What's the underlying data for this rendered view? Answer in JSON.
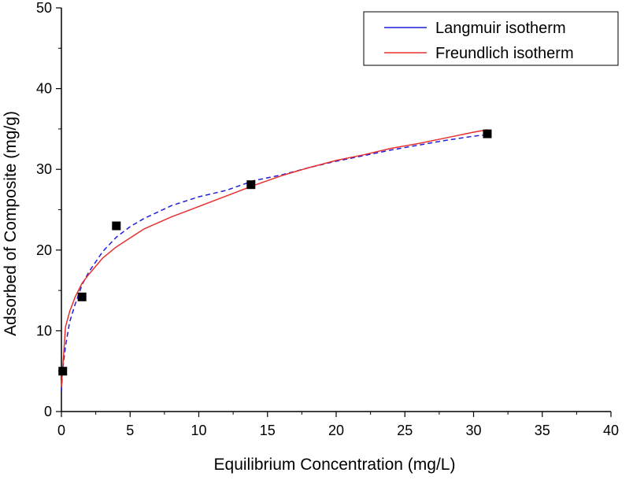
{
  "chart_data": {
    "type": "scatter",
    "xlabel": "Equilibrium Concentration (mg/L)",
    "ylabel": "Adsorbed of Composite (mg/g)",
    "xlim": [
      0,
      40
    ],
    "ylim": [
      0,
      50
    ],
    "xticks": [
      0,
      5,
      10,
      15,
      20,
      25,
      30,
      35,
      40
    ],
    "yticks": [
      0,
      10,
      20,
      30,
      40,
      50
    ],
    "grid": false,
    "legend_position": "top-right",
    "points": {
      "marker": "filled-square",
      "color": "#000000",
      "x": [
        0.1,
        1.5,
        4.0,
        13.8,
        31.0
      ],
      "y": [
        5.0,
        14.2,
        23.0,
        28.1,
        34.4
      ]
    },
    "series": [
      {
        "name": "Langmuir isotherm",
        "style": "dashed",
        "color": "#1f1fdd",
        "x": [
          0,
          0.1,
          0.3,
          0.6,
          1,
          1.5,
          2,
          3,
          4,
          5,
          6,
          8,
          10,
          12,
          14,
          16,
          18,
          20,
          22,
          24,
          26,
          28,
          30,
          31
        ],
        "y": [
          2.5,
          5.3,
          8.1,
          11.1,
          13.3,
          15.7,
          17.3,
          19.8,
          21.6,
          22.9,
          23.9,
          25.5,
          26.6,
          27.4,
          28.6,
          29.3,
          30.2,
          31.0,
          31.7,
          32.4,
          33.0,
          33.6,
          34.1,
          34.3
        ]
      },
      {
        "name": "Freundlich isotherm",
        "style": "solid",
        "color": "#e83030",
        "x": [
          0,
          0.1,
          0.3,
          0.6,
          1,
          1.5,
          2,
          3,
          4,
          5,
          6,
          8,
          10,
          12,
          14,
          16,
          18,
          20,
          22,
          24,
          26,
          28,
          30,
          31
        ],
        "y": [
          3.0,
          5.5,
          10.5,
          12.4,
          14.2,
          15.9,
          17.0,
          19.0,
          20.4,
          21.5,
          22.6,
          24.1,
          25.4,
          26.7,
          28.0,
          29.2,
          30.2,
          31.1,
          31.8,
          32.6,
          33.2,
          33.9,
          34.6,
          34.9
        ]
      }
    ]
  }
}
